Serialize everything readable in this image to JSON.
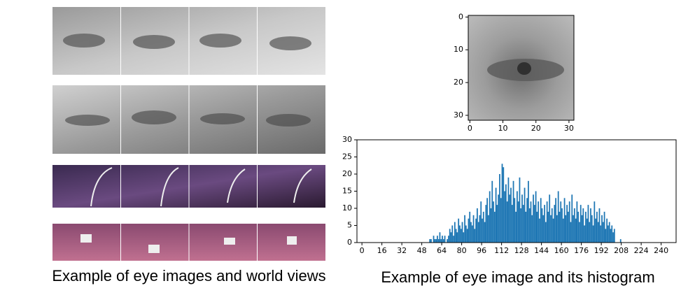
{
  "chart_data": [
    {
      "type": "image",
      "xlim": [
        -0.5,
        31.5
      ],
      "ylim": [
        31.5,
        -0.5
      ],
      "xticks": [
        0,
        10,
        20,
        30
      ],
      "yticks": [
        0,
        10,
        20,
        30
      ]
    },
    {
      "type": "histogram",
      "color": "#1f77b4",
      "xlim": [
        -4,
        252
      ],
      "ylim": [
        0,
        30
      ],
      "xticks": [
        0,
        16,
        32,
        48,
        64,
        80,
        96,
        112,
        128,
        144,
        160,
        176,
        192,
        208,
        224,
        240
      ],
      "yticks": [
        0,
        5,
        10,
        15,
        20,
        25,
        30
      ],
      "bins": [
        54,
        55,
        56,
        57,
        58,
        59,
        60,
        61,
        62,
        63,
        64,
        65,
        66,
        67,
        68,
        69,
        70,
        71,
        72,
        73,
        74,
        75,
        76,
        77,
        78,
        79,
        80,
        81,
        82,
        83,
        84,
        85,
        86,
        87,
        88,
        89,
        90,
        91,
        92,
        93,
        94,
        95,
        96,
        97,
        98,
        99,
        100,
        101,
        102,
        103,
        104,
        105,
        106,
        107,
        108,
        109,
        110,
        111,
        112,
        113,
        114,
        115,
        116,
        117,
        118,
        119,
        120,
        121,
        122,
        123,
        124,
        125,
        126,
        127,
        128,
        129,
        130,
        131,
        132,
        133,
        134,
        135,
        136,
        137,
        138,
        139,
        140,
        141,
        142,
        143,
        144,
        145,
        146,
        147,
        148,
        149,
        150,
        151,
        152,
        153,
        154,
        155,
        156,
        157,
        158,
        159,
        160,
        161,
        162,
        163,
        164,
        165,
        166,
        167,
        168,
        169,
        170,
        171,
        172,
        173,
        174,
        175,
        176,
        177,
        178,
        179,
        180,
        181,
        182,
        183,
        184,
        185,
        186,
        187,
        188,
        189,
        190,
        191,
        192,
        193,
        194,
        195,
        196,
        197,
        198,
        199,
        200,
        201,
        202,
        203,
        204,
        205,
        206,
        207,
        208
      ],
      "values": [
        1,
        1,
        0,
        2,
        1,
        1,
        2,
        1,
        3,
        1,
        2,
        1,
        2,
        0,
        1,
        2,
        4,
        3,
        5,
        2,
        6,
        4,
        3,
        7,
        5,
        4,
        6,
        3,
        8,
        5,
        4,
        7,
        9,
        6,
        5,
        8,
        4,
        7,
        10,
        6,
        8,
        12,
        7,
        9,
        6,
        11,
        13,
        8,
        15,
        10,
        18,
        12,
        9,
        16,
        11,
        14,
        20,
        13,
        23,
        22,
        15,
        17,
        12,
        19,
        14,
        16,
        11,
        18,
        13,
        9,
        15,
        12,
        19,
        10,
        14,
        11,
        16,
        9,
        13,
        18,
        10,
        12,
        8,
        14,
        11,
        15,
        9,
        12,
        7,
        13,
        10,
        8,
        11,
        6,
        12,
        9,
        14,
        8,
        10,
        7,
        11,
        13,
        8,
        15,
        9,
        12,
        10,
        7,
        13,
        8,
        11,
        9,
        12,
        6,
        14,
        8,
        10,
        7,
        12,
        9,
        6,
        11,
        8,
        10,
        5,
        9,
        7,
        11,
        6,
        10,
        8,
        5,
        12,
        7,
        9,
        6,
        10,
        5,
        8,
        6,
        9,
        4,
        7,
        5,
        6,
        4,
        5,
        3,
        4,
        0,
        0,
        0,
        0,
        1
      ]
    }
  ],
  "captions": [
    "Example of eye images and world views",
    "Example of eye image and its histogram"
  ]
}
